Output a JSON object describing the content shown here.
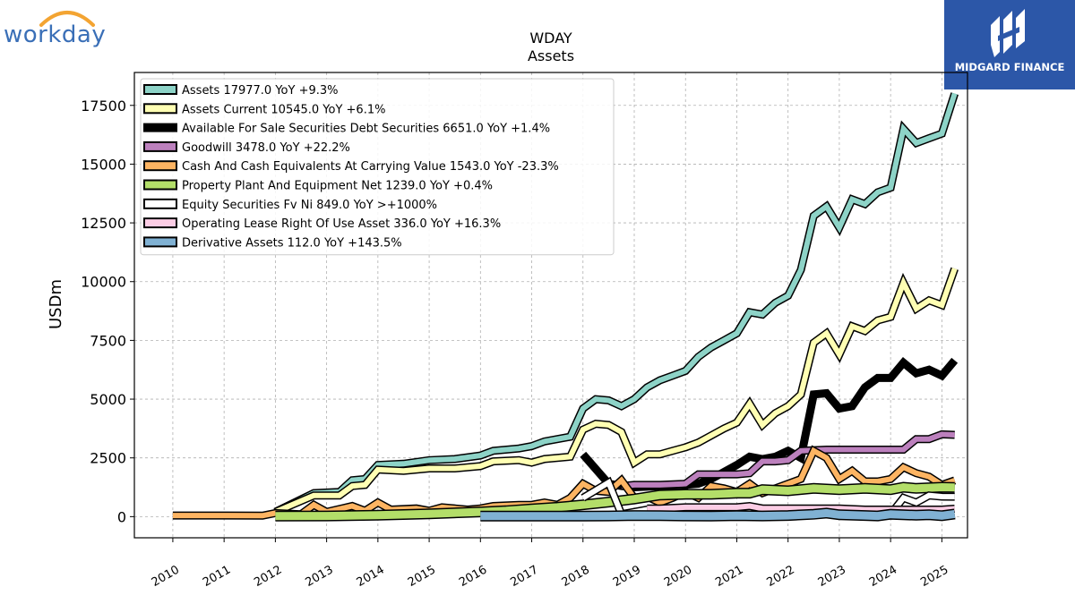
{
  "logo_left": {
    "text": "workday",
    "accent": "#f3a432",
    "color": "#3a6fb7"
  },
  "logo_right": {
    "text": "MIDGARD FINANCE",
    "bg": "#2c57a8"
  },
  "chart_data": {
    "type": "line",
    "title": "WDAY",
    "subtitle": "Assets",
    "ylabel": "USDm",
    "xlabel": "",
    "xlim": [
      2009.25,
      2025.5
    ],
    "ylim": [
      -900,
      18900
    ],
    "yticks": [
      0,
      2500,
      5000,
      7500,
      10000,
      12500,
      15000,
      17500
    ],
    "xticks": [
      2010,
      2011,
      2012,
      2013,
      2014,
      2015,
      2016,
      2017,
      2018,
      2019,
      2020,
      2021,
      2022,
      2023,
      2024,
      2025
    ],
    "grid": true,
    "legend_position": "top-left",
    "series": [
      {
        "name": "Assets",
        "legend": "Assets  17977.0 YoY +9.3%",
        "color": "#8dd3c7",
        "width": 6,
        "points": [
          [
            2012.0,
            200
          ],
          [
            2012.75,
            1000
          ],
          [
            2013.25,
            1050
          ],
          [
            2013.5,
            1550
          ],
          [
            2013.75,
            1600
          ],
          [
            2014.0,
            2200
          ],
          [
            2014.5,
            2250
          ],
          [
            2015.0,
            2400
          ],
          [
            2015.5,
            2450
          ],
          [
            2016.0,
            2600
          ],
          [
            2016.25,
            2800
          ],
          [
            2016.75,
            2900
          ],
          [
            2017.0,
            3000
          ],
          [
            2017.25,
            3200
          ],
          [
            2017.75,
            3400
          ],
          [
            2018.0,
            4600
          ],
          [
            2018.25,
            5000
          ],
          [
            2018.5,
            4950
          ],
          [
            2018.75,
            4700
          ],
          [
            2019.0,
            5000
          ],
          [
            2019.25,
            5500
          ],
          [
            2019.5,
            5800
          ],
          [
            2019.75,
            6000
          ],
          [
            2020.0,
            6200
          ],
          [
            2020.25,
            6800
          ],
          [
            2020.5,
            7200
          ],
          [
            2020.75,
            7500
          ],
          [
            2021.0,
            7800
          ],
          [
            2021.25,
            8700
          ],
          [
            2021.5,
            8600
          ],
          [
            2021.75,
            9100
          ],
          [
            2022.0,
            9400
          ],
          [
            2022.25,
            10500
          ],
          [
            2022.5,
            12800
          ],
          [
            2022.75,
            13200
          ],
          [
            2023.0,
            12300
          ],
          [
            2023.25,
            13500
          ],
          [
            2023.5,
            13300
          ],
          [
            2023.75,
            13800
          ],
          [
            2024.0,
            14000
          ],
          [
            2024.25,
            16500
          ],
          [
            2024.5,
            15900
          ],
          [
            2024.75,
            16100
          ],
          [
            2025.0,
            16300
          ],
          [
            2025.25,
            18000
          ]
        ]
      },
      {
        "name": "Assets Current",
        "legend": "Assets Current  10545.0 YoY +6.1%",
        "color": "#ffffb3",
        "width": 6,
        "points": [
          [
            2012.0,
            200
          ],
          [
            2012.75,
            900
          ],
          [
            2013.25,
            900
          ],
          [
            2013.5,
            1300
          ],
          [
            2013.75,
            1350
          ],
          [
            2014.0,
            2000
          ],
          [
            2014.5,
            1950
          ],
          [
            2015.0,
            2050
          ],
          [
            2015.5,
            2050
          ],
          [
            2016.0,
            2150
          ],
          [
            2016.25,
            2350
          ],
          [
            2016.75,
            2400
          ],
          [
            2017.0,
            2300
          ],
          [
            2017.25,
            2450
          ],
          [
            2017.75,
            2550
          ],
          [
            2018.0,
            3700
          ],
          [
            2018.25,
            3950
          ],
          [
            2018.5,
            3900
          ],
          [
            2018.75,
            3600
          ],
          [
            2019.0,
            2300
          ],
          [
            2019.25,
            2650
          ],
          [
            2019.5,
            2650
          ],
          [
            2019.75,
            2800
          ],
          [
            2020.0,
            2950
          ],
          [
            2020.25,
            3150
          ],
          [
            2020.5,
            3450
          ],
          [
            2020.75,
            3750
          ],
          [
            2021.0,
            4000
          ],
          [
            2021.25,
            4800
          ],
          [
            2021.5,
            3900
          ],
          [
            2021.75,
            4400
          ],
          [
            2022.0,
            4700
          ],
          [
            2022.25,
            5200
          ],
          [
            2022.5,
            7400
          ],
          [
            2022.75,
            7800
          ],
          [
            2023.0,
            6900
          ],
          [
            2023.25,
            8100
          ],
          [
            2023.5,
            7900
          ],
          [
            2023.75,
            8350
          ],
          [
            2024.0,
            8500
          ],
          [
            2024.25,
            9950
          ],
          [
            2024.5,
            8850
          ],
          [
            2024.75,
            9200
          ],
          [
            2025.0,
            9000
          ],
          [
            2025.25,
            10550
          ]
        ]
      },
      {
        "name": "Available For Sale Securities Debt Securities",
        "legend": "Available For Sale Securities Debt Securities  6651.0 YoY +1.4%",
        "color": "#000000",
        "width": 9,
        "points": [
          [
            2018.0,
            2650
          ],
          [
            2018.5,
            1400
          ],
          [
            2018.75,
            1300
          ],
          [
            2019.0,
            1250
          ],
          [
            2019.5,
            1300
          ],
          [
            2020.0,
            1350
          ],
          [
            2020.25,
            1400
          ],
          [
            2020.5,
            1600
          ],
          [
            2020.75,
            1900
          ],
          [
            2021.0,
            2200
          ],
          [
            2021.25,
            2550
          ],
          [
            2021.5,
            2450
          ],
          [
            2021.75,
            2550
          ],
          [
            2022.0,
            2800
          ],
          [
            2022.25,
            2500
          ],
          [
            2022.5,
            5200
          ],
          [
            2022.75,
            5250
          ],
          [
            2023.0,
            4600
          ],
          [
            2023.25,
            4700
          ],
          [
            2023.5,
            5500
          ],
          [
            2023.75,
            5900
          ],
          [
            2024.0,
            5900
          ],
          [
            2024.25,
            6550
          ],
          [
            2024.5,
            6100
          ],
          [
            2024.75,
            6250
          ],
          [
            2025.0,
            6000
          ],
          [
            2025.25,
            6650
          ]
        ]
      },
      {
        "name": "Goodwill",
        "legend": "Goodwill  3478.0 YoY +22.2%",
        "color": "#bc80bd",
        "width": 6,
        "points": [
          [
            2018.75,
            1300
          ],
          [
            2019.0,
            1350
          ],
          [
            2019.5,
            1350
          ],
          [
            2020.0,
            1400
          ],
          [
            2020.25,
            1800
          ],
          [
            2020.75,
            1800
          ],
          [
            2021.0,
            1800
          ],
          [
            2021.25,
            1850
          ],
          [
            2021.5,
            2350
          ],
          [
            2021.75,
            2350
          ],
          [
            2022.0,
            2400
          ],
          [
            2022.25,
            2800
          ],
          [
            2022.75,
            2850
          ],
          [
            2023.0,
            2850
          ],
          [
            2023.5,
            2850
          ],
          [
            2024.0,
            2850
          ],
          [
            2024.25,
            2850
          ],
          [
            2024.5,
            3300
          ],
          [
            2024.75,
            3300
          ],
          [
            2025.0,
            3500
          ],
          [
            2025.25,
            3480
          ]
        ]
      },
      {
        "name": "Cash And Cash Equivalents At Carrying Value",
        "legend": "Cash And Cash Equivalents At Carrying Value  1543.0 YoY -23.3%",
        "color": "#fdb462",
        "width": 6,
        "points": [
          [
            2010.0,
            50
          ],
          [
            2011.0,
            50
          ],
          [
            2011.75,
            40
          ],
          [
            2012.0,
            150
          ],
          [
            2012.5,
            100
          ],
          [
            2012.75,
            500
          ],
          [
            2013.0,
            200
          ],
          [
            2013.5,
            450
          ],
          [
            2013.75,
            250
          ],
          [
            2014.0,
            600
          ],
          [
            2014.25,
            300
          ],
          [
            2014.75,
            350
          ],
          [
            2015.0,
            250
          ],
          [
            2015.25,
            400
          ],
          [
            2015.75,
            300
          ],
          [
            2016.0,
            350
          ],
          [
            2016.25,
            450
          ],
          [
            2016.75,
            500
          ],
          [
            2017.0,
            500
          ],
          [
            2017.25,
            600
          ],
          [
            2017.5,
            500
          ],
          [
            2017.75,
            800
          ],
          [
            2018.0,
            1400
          ],
          [
            2018.25,
            1100
          ],
          [
            2018.5,
            1050
          ],
          [
            2018.75,
            1550
          ],
          [
            2019.0,
            800
          ],
          [
            2019.25,
            850
          ],
          [
            2019.5,
            600
          ],
          [
            2019.75,
            800
          ],
          [
            2020.0,
            1050
          ],
          [
            2020.25,
            800
          ],
          [
            2020.5,
            1300
          ],
          [
            2020.75,
            1200
          ],
          [
            2021.0,
            1050
          ],
          [
            2021.25,
            1400
          ],
          [
            2021.5,
            1000
          ],
          [
            2021.75,
            1200
          ],
          [
            2022.0,
            1400
          ],
          [
            2022.25,
            1600
          ],
          [
            2022.5,
            2800
          ],
          [
            2022.75,
            2500
          ],
          [
            2023.0,
            1600
          ],
          [
            2023.25,
            1950
          ],
          [
            2023.5,
            1500
          ],
          [
            2023.75,
            1500
          ],
          [
            2024.0,
            1600
          ],
          [
            2024.25,
            2100
          ],
          [
            2024.5,
            1850
          ],
          [
            2024.75,
            1700
          ],
          [
            2025.0,
            1350
          ],
          [
            2025.25,
            1540
          ]
        ]
      },
      {
        "name": "Property Plant And Equipment Net",
        "legend": "Property Plant And Equipment Net  1239.0 YoY +0.4%",
        "color": "#b3de69",
        "width": 9,
        "points": [
          [
            2012.0,
            20
          ],
          [
            2013.0,
            30
          ],
          [
            2014.0,
            60
          ],
          [
            2015.0,
            120
          ],
          [
            2016.0,
            200
          ],
          [
            2016.5,
            250
          ],
          [
            2017.0,
            330
          ],
          [
            2017.5,
            400
          ],
          [
            2018.0,
            500
          ],
          [
            2018.5,
            620
          ],
          [
            2019.0,
            750
          ],
          [
            2019.5,
            920
          ],
          [
            2020.0,
            950
          ],
          [
            2020.5,
            950
          ],
          [
            2021.0,
            1000
          ],
          [
            2021.25,
            1000
          ],
          [
            2021.5,
            1150
          ],
          [
            2022.0,
            1100
          ],
          [
            2022.5,
            1200
          ],
          [
            2023.0,
            1150
          ],
          [
            2023.5,
            1200
          ],
          [
            2024.0,
            1150
          ],
          [
            2024.25,
            1250
          ],
          [
            2024.5,
            1200
          ],
          [
            2025.0,
            1250
          ],
          [
            2025.25,
            1240
          ]
        ]
      },
      {
        "name": "Equity Securities Fv Ni",
        "legend": "Equity Securities Fv Ni  849.0 YoY >+1000%",
        "color": "#ffffff",
        "width": 6,
        "points": [
          [
            2018.0,
            800
          ],
          [
            2018.5,
            1450
          ],
          [
            2018.75,
            100
          ],
          [
            2019.25,
            300
          ],
          [
            2020.0,
            300
          ],
          [
            2020.5,
            300
          ],
          [
            2021.0,
            300
          ],
          [
            2021.5,
            300
          ],
          [
            2022.0,
            300
          ],
          [
            2022.5,
            300
          ],
          [
            2023.0,
            300
          ],
          [
            2023.5,
            300
          ],
          [
            2023.75,
            50
          ],
          [
            2024.0,
            100
          ],
          [
            2024.25,
            800
          ],
          [
            2024.5,
            600
          ],
          [
            2024.75,
            900
          ],
          [
            2025.0,
            850
          ],
          [
            2025.25,
            849
          ]
        ]
      },
      {
        "name": "Operating Lease Right Of Use Asset",
        "legend": "Operating Lease Right Of Use Asset  336.0 YoY +16.3%",
        "color": "#fccde5",
        "width": 6,
        "points": [
          [
            2019.25,
            350
          ],
          [
            2019.5,
            350
          ],
          [
            2020.0,
            400
          ],
          [
            2020.5,
            400
          ],
          [
            2021.0,
            400
          ],
          [
            2021.25,
            450
          ],
          [
            2021.5,
            350
          ],
          [
            2022.0,
            350
          ],
          [
            2022.5,
            350
          ],
          [
            2023.0,
            350
          ],
          [
            2023.5,
            300
          ],
          [
            2024.0,
            300
          ],
          [
            2024.5,
            300
          ],
          [
            2025.0,
            300
          ],
          [
            2025.25,
            336
          ]
        ]
      },
      {
        "name": "Derivative Assets",
        "legend": "Derivative Assets  112.0 YoY +143.5%",
        "color": "#80b1d3",
        "width": 9,
        "points": [
          [
            2016.0,
            20
          ],
          [
            2017.0,
            20
          ],
          [
            2018.0,
            20
          ],
          [
            2018.5,
            30
          ],
          [
            2019.0,
            50
          ],
          [
            2019.5,
            40
          ],
          [
            2020.0,
            30
          ],
          [
            2020.5,
            20
          ],
          [
            2021.0,
            40
          ],
          [
            2021.5,
            30
          ],
          [
            2022.0,
            50
          ],
          [
            2022.5,
            100
          ],
          [
            2022.75,
            150
          ],
          [
            2023.0,
            80
          ],
          [
            2023.5,
            50
          ],
          [
            2023.75,
            30
          ],
          [
            2024.0,
            100
          ],
          [
            2024.5,
            60
          ],
          [
            2024.75,
            80
          ],
          [
            2025.0,
            40
          ],
          [
            2025.25,
            112
          ]
        ]
      }
    ]
  }
}
